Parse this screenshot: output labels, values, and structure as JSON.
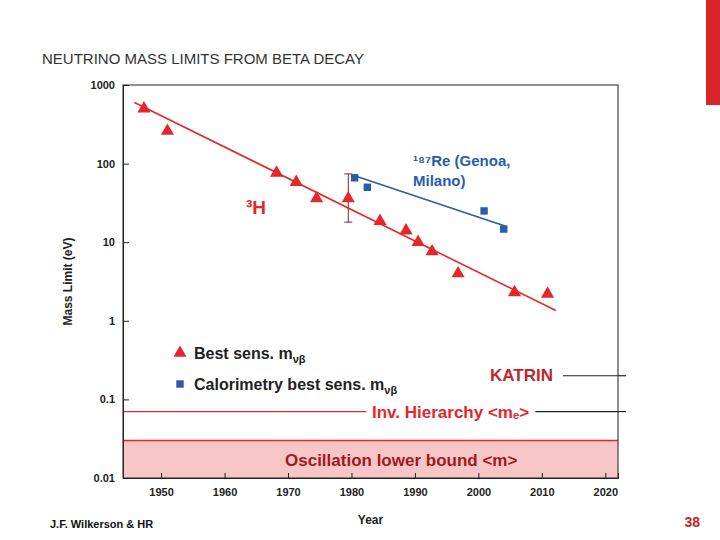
{
  "title": "NEUTRINO MASS LIMITS FROM BETA DECAY",
  "credit": "J.F. Wilkerson & HR",
  "page_number": "38",
  "chart_data": {
    "type": "scatter",
    "x_label": "Year",
    "y_label": "Mass Limit (eV)",
    "log": "y",
    "grid": false,
    "legend": "lower left",
    "xlim": [
      1944,
      2022
    ],
    "xticks": [
      1950,
      1960,
      1970,
      1980,
      1990,
      2000,
      2010,
      2020
    ],
    "ylim": [
      0.01,
      1000
    ],
    "yticks": [
      0.01,
      0.1,
      1,
      10,
      100,
      1000
    ],
    "series": [
      {
        "name": "Best sens. mνβ",
        "type": "scatter",
        "color": "#e5262b",
        "marker": "triangle",
        "x": [
          1947.3,
          1951,
          1968.2,
          1971.3,
          1974.5,
          1979.5,
          1984.5,
          1988.6,
          1990.5,
          1992.7,
          1996.8,
          2005.7,
          2010.9
        ],
        "values": [
          500,
          260,
          76,
          58,
          36,
          36,
          18.5,
          14,
          10,
          7.6,
          4,
          2.3,
          2.2
        ],
        "error_minus": [
          null,
          null,
          null,
          null,
          null,
          18,
          null,
          null,
          null,
          null,
          null,
          null,
          null
        ],
        "error_plus": [
          null,
          null,
          null,
          null,
          null,
          38,
          null,
          null,
          null,
          null,
          null,
          null,
          null
        ]
      },
      {
        "name": "Calorimetry best sens. mνβ",
        "type": "scatter",
        "color": "#2a5caa",
        "marker": "square",
        "x": [
          1980.5,
          1982.5,
          2000.9,
          2004
        ],
        "values": [
          66,
          50,
          25,
          14.7
        ]
      },
      {
        "type": "line",
        "color": "#e5262b",
        "line_style": "solid",
        "x": [
          1945.8,
          2012.2
        ],
        "values": [
          600,
          1.35
        ]
      },
      {
        "type": "line",
        "color": "#2a5caa",
        "line_style": "solid",
        "x": [
          1980.5,
          2004.3
        ],
        "values": [
          70,
          16
        ]
      }
    ],
    "reference_lines": [
      {
        "label": "KATRIN",
        "value": 0.2,
        "color": "#222222"
      },
      {
        "label": "Inv. Hierarchy <mₑ>",
        "value": 0.07,
        "color": "#e5262b"
      }
    ],
    "bands": [
      {
        "label": "Oscillation lower bound <m>",
        "from": 0.01,
        "to": 0.03,
        "color": "#f8c6c6"
      }
    ],
    "annotations": [
      {
        "text": [
          "³H"
        ],
        "color": "#e5262b"
      },
      {
        "text": [
          "¹⁸⁷Re (Genoa,",
          "Milano)"
        ],
        "color": "#2a5caa"
      }
    ]
  }
}
